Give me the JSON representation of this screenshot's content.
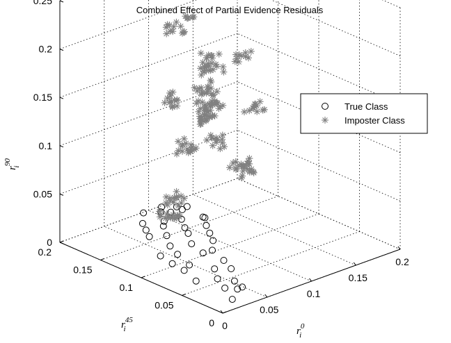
{
  "chart_data": {
    "type": "scatter",
    "title": "Combined Effect of Partial Evidence Residuals",
    "axes": {
      "x": {
        "label_base": "r",
        "label_sub": "i",
        "label_sup": "0",
        "lim": [
          0,
          0.2
        ],
        "ticks": [
          "0",
          "0.05",
          "0.1",
          "0.15",
          "0.2"
        ]
      },
      "y": {
        "label_base": "r",
        "label_sub": "i",
        "label_sup": "45",
        "lim": [
          0,
          0.2
        ],
        "ticks": [
          "0",
          "0.05",
          "0.1",
          "0.15",
          "0.2"
        ]
      },
      "z": {
        "label_base": "r",
        "label_sub": "i",
        "label_sup": "90",
        "lim": [
          0,
          0.25
        ],
        "ticks": [
          "0",
          "0.05",
          "0.1",
          "0.15",
          "0.2",
          "0.25"
        ]
      }
    },
    "grid": true,
    "legend": {
      "position": "top-right",
      "entries": [
        "True Class",
        "Imposter Class"
      ]
    },
    "series": [
      {
        "name": "True Class",
        "marker": "circle",
        "color": "#000000",
        "points": [
          [
            0.02,
            0.01,
            0.004
          ],
          [
            0.035,
            0.02,
            0.006
          ],
          [
            0.03,
            0.03,
            0.005
          ],
          [
            0.045,
            0.025,
            0.003
          ],
          [
            0.05,
            0.04,
            0.002
          ],
          [
            0.04,
            0.05,
            0.004
          ],
          [
            0.06,
            0.055,
            0.006
          ],
          [
            0.025,
            0.06,
            0.003
          ],
          [
            0.055,
            0.07,
            0.002
          ],
          [
            0.03,
            0.08,
            0.005
          ],
          [
            0.07,
            0.075,
            0.004
          ],
          [
            0.045,
            0.09,
            0.002
          ],
          [
            0.065,
            0.095,
            0.006
          ],
          [
            0.035,
            0.1,
            0.003
          ],
          [
            0.08,
            0.1,
            0.002
          ],
          [
            0.05,
            0.11,
            0.004
          ],
          [
            0.09,
            0.11,
            0.005
          ],
          [
            0.04,
            0.12,
            0.002
          ],
          [
            0.075,
            0.12,
            0.003
          ],
          [
            0.1,
            0.125,
            0.004
          ],
          [
            0.06,
            0.13,
            0.002
          ],
          [
            0.085,
            0.135,
            0.005
          ],
          [
            0.11,
            0.14,
            0.003
          ],
          [
            0.07,
            0.145,
            0.004
          ],
          [
            0.095,
            0.15,
            0.002
          ],
          [
            0.055,
            0.15,
            0.006
          ],
          [
            0.12,
            0.155,
            0.003
          ],
          [
            0.08,
            0.16,
            0.005
          ],
          [
            0.105,
            0.165,
            0.002
          ],
          [
            0.065,
            0.165,
            0.004
          ],
          [
            0.09,
            0.17,
            0.003
          ],
          [
            0.115,
            0.175,
            0.005
          ],
          [
            0.075,
            0.18,
            0.002
          ],
          [
            0.1,
            0.185,
            0.004
          ],
          [
            0.125,
            0.18,
            0.003
          ],
          [
            0.085,
            0.19,
            0.006
          ],
          [
            0.11,
            0.195,
            0.002
          ],
          [
            0.095,
            0.16,
            0.02
          ],
          [
            0.07,
            0.14,
            0.03
          ],
          [
            0.09,
            0.12,
            0.025
          ]
        ]
      },
      {
        "name": "Imposter Class",
        "marker": "asterisk",
        "color": "#808080",
        "clusters": [
          {
            "center": [
              0.08,
              0.15,
              0.02
            ],
            "spread": [
              0.008,
              0.008,
              0.004
            ],
            "count": 16
          },
          {
            "center": [
              0.11,
              0.18,
              0.015
            ],
            "spread": [
              0.01,
              0.008,
              0.004
            ],
            "count": 14
          },
          {
            "center": [
              0.16,
              0.15,
              0.045
            ],
            "spread": [
              0.01,
              0.01,
              0.008
            ],
            "count": 24
          },
          {
            "center": [
              0.15,
              0.17,
              0.065
            ],
            "spread": [
              0.008,
              0.008,
              0.006
            ],
            "count": 14
          },
          {
            "center": [
              0.15,
              0.18,
              0.1
            ],
            "spread": [
              0.012,
              0.008,
              0.008
            ],
            "count": 26
          },
          {
            "center": [
              0.07,
              0.12,
              0.105
            ],
            "spread": [
              0.01,
              0.008,
              0.006
            ],
            "count": 18
          },
          {
            "center": [
              0.1,
              0.13,
              0.125
            ],
            "spread": [
              0.01,
              0.008,
              0.008
            ],
            "count": 22
          },
          {
            "center": [
              0.13,
              0.16,
              0.13
            ],
            "spread": [
              0.008,
              0.008,
              0.006
            ],
            "count": 18
          },
          {
            "center": [
              0.14,
              0.17,
              0.15
            ],
            "spread": [
              0.01,
              0.008,
              0.01
            ],
            "count": 26
          },
          {
            "center": [
              0.08,
              0.15,
              0.14
            ],
            "spread": [
              0.008,
              0.008,
              0.006
            ],
            "count": 14
          },
          {
            "center": [
              0.12,
              0.19,
              0.185
            ],
            "spread": [
              0.008,
              0.006,
              0.006
            ],
            "count": 12
          },
          {
            "center": [
              0.13,
              0.12,
              0.18
            ],
            "spread": [
              0.008,
              0.006,
              0.005
            ],
            "count": 10
          },
          {
            "center": [
              0.09,
              0.06,
              0.16
            ],
            "spread": [
              0.01,
              0.006,
              0.004
            ],
            "count": 12
          },
          {
            "center": [
              0.11,
              0.16,
              0.21
            ],
            "spread": [
              0.004,
              0.004,
              0.003
            ],
            "count": 6
          }
        ]
      }
    ]
  }
}
